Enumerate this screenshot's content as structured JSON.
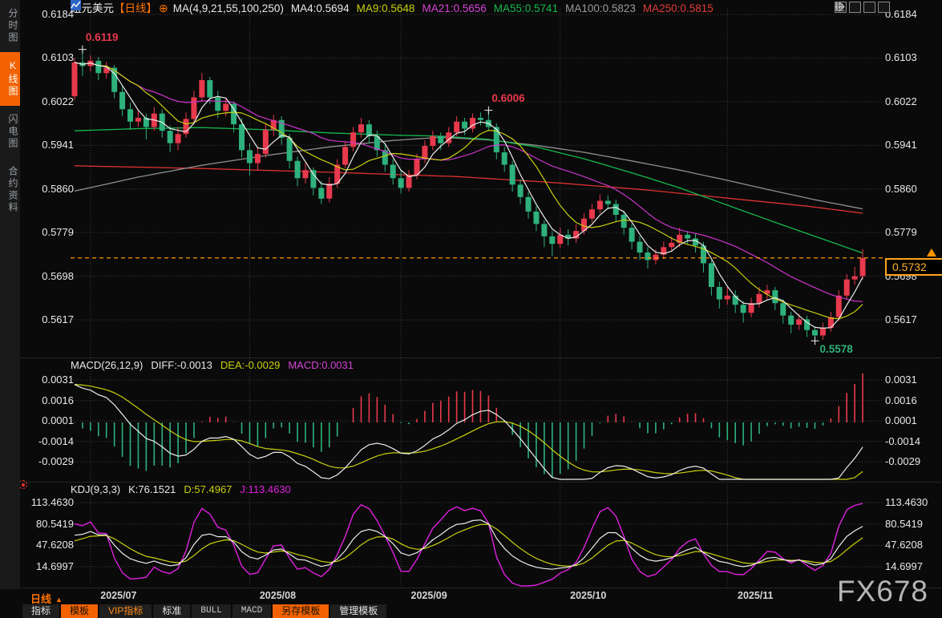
{
  "header": {
    "symbol": "纽元美元",
    "period_tag": "【日线】",
    "add_icon": "⊕",
    "ma_group_label": "MA(4,9,21,55,100,250)",
    "ma_values": [
      {
        "label": "MA4:0.5694",
        "color": "#e8e8e8"
      },
      {
        "label": "MA9:0.5648",
        "color": "#c9d00e"
      },
      {
        "label": "MA21:0.5656",
        "color": "#d543d5"
      },
      {
        "label": "MA55:0.5741",
        "color": "#16b84e"
      },
      {
        "label": "MA100:0.5823",
        "color": "#9a9a9a"
      },
      {
        "label": "MA250:0.5815",
        "color": "#e23b3b"
      }
    ],
    "toolbar_icons": [
      "move-icon",
      "axis-scale-left-icon",
      "axis-scale-right-icon",
      "pan-latest-icon"
    ]
  },
  "sidebar": {
    "items": [
      {
        "label": "分时图",
        "active": false
      },
      {
        "label": "K线图",
        "active": true
      },
      {
        "label": "闪电图",
        "active": false
      },
      {
        "label": "合约资料",
        "active": false
      }
    ]
  },
  "watermark": "FX678",
  "bottom": {
    "period_label": "日线",
    "period_arrow": "▲",
    "tabs": [
      {
        "label": "指标",
        "style": "plain"
      },
      {
        "label": "模板",
        "style": "orange"
      },
      {
        "label": "VIP指标",
        "style": "orange-text"
      },
      {
        "label": "标准",
        "style": "plain"
      },
      {
        "label": "BULL",
        "style": "mono"
      },
      {
        "label": "MACD",
        "style": "mono"
      },
      {
        "label": "另存模板",
        "style": "orange"
      },
      {
        "label": "管理模板",
        "style": "plain"
      }
    ]
  },
  "chart_data": {
    "type": "candlestick+indicators",
    "x_labels": [
      "2025/07",
      "2025/08",
      "2025/09",
      "2025/10",
      "2025/11"
    ],
    "x_label_indices": [
      2,
      22,
      41,
      61,
      82
    ],
    "colors": {
      "up": "#e8394d",
      "down": "#2eb17c",
      "ma4": "#ececec",
      "ma9": "#c9d00e",
      "ma21": "#cc35cc",
      "ma55": "#16b84e",
      "ma100": "#8f8f8f",
      "ma250": "#e03131",
      "grid": "#3c3c3c",
      "price_line": "#ff9500",
      "kdj_k": "#ececec",
      "kdj_d": "#c9d00e",
      "kdj_j": "#e020e0"
    },
    "main": {
      "y_ticks": [
        "0.6184",
        "0.6103",
        "0.6022",
        "0.5941",
        "0.5860",
        "0.5779",
        "0.5698",
        "0.5617"
      ],
      "last_price": "0.5732",
      "price_line_value": 0.5732,
      "annotations": [
        {
          "text": "0.6119",
          "index": 1,
          "price": 0.6119,
          "color": "#e8394d",
          "pos": "above"
        },
        {
          "text": "0.6006",
          "index": 52,
          "price": 0.6006,
          "color": "#e8394d",
          "pos": "above"
        },
        {
          "text": "0.5578",
          "index": 93,
          "price": 0.5578,
          "color": "#2eb17c",
          "pos": "below"
        }
      ],
      "ma55_path": [
        [
          0,
          0.5968
        ],
        [
          8,
          0.5972
        ],
        [
          16,
          0.5974
        ],
        [
          24,
          0.597
        ],
        [
          32,
          0.5964
        ],
        [
          40,
          0.596
        ],
        [
          46,
          0.5958
        ],
        [
          52,
          0.5952
        ],
        [
          58,
          0.5938
        ],
        [
          64,
          0.5916
        ],
        [
          70,
          0.589
        ],
        [
          76,
          0.5862
        ],
        [
          82,
          0.583
        ],
        [
          88,
          0.5798
        ],
        [
          93,
          0.5772
        ],
        [
          99,
          0.5741
        ]
      ],
      "ma100_path": [
        [
          0,
          0.5856
        ],
        [
          8,
          0.5882
        ],
        [
          16,
          0.5904
        ],
        [
          24,
          0.5922
        ],
        [
          32,
          0.5938
        ],
        [
          40,
          0.595
        ],
        [
          46,
          0.5956
        ],
        [
          52,
          0.5951
        ],
        [
          58,
          0.5941
        ],
        [
          64,
          0.5928
        ],
        [
          70,
          0.5912
        ],
        [
          76,
          0.5895
        ],
        [
          82,
          0.5876
        ],
        [
          88,
          0.5856
        ],
        [
          93,
          0.584
        ],
        [
          99,
          0.5823
        ]
      ],
      "ma250_path": [
        [
          0,
          0.5903
        ],
        [
          16,
          0.5898
        ],
        [
          32,
          0.5891
        ],
        [
          48,
          0.5883
        ],
        [
          60,
          0.5872
        ],
        [
          72,
          0.5858
        ],
        [
          84,
          0.584
        ],
        [
          92,
          0.5828
        ],
        [
          99,
          0.5815
        ]
      ],
      "candles": [
        [
          0.6032,
          0.6103,
          0.6025,
          0.6095
        ],
        [
          0.6095,
          0.6119,
          0.607,
          0.6088
        ],
        [
          0.6088,
          0.6108,
          0.6078,
          0.6098
        ],
        [
          0.6098,
          0.6105,
          0.6062,
          0.6075
        ],
        [
          0.6075,
          0.6096,
          0.6065,
          0.6085
        ],
        [
          0.6085,
          0.609,
          0.6028,
          0.604
        ],
        [
          0.604,
          0.6052,
          0.5995,
          0.6008
        ],
        [
          0.6008,
          0.602,
          0.597,
          0.5985
        ],
        [
          0.5985,
          0.6005,
          0.5975,
          0.5992
        ],
        [
          0.5992,
          0.6,
          0.5952,
          0.5975
        ],
        [
          0.5975,
          0.6012,
          0.5968,
          0.6
        ],
        [
          0.6,
          0.6008,
          0.5955,
          0.5968
        ],
        [
          0.5968,
          0.5978,
          0.5928,
          0.5945
        ],
        [
          0.5945,
          0.5975,
          0.5932,
          0.5962
        ],
        [
          0.5962,
          0.6002,
          0.5955,
          0.599
        ],
        [
          0.599,
          0.6042,
          0.5982,
          0.603
        ],
        [
          0.603,
          0.6075,
          0.6022,
          0.6062
        ],
        [
          0.6062,
          0.6068,
          0.6018,
          0.603
        ],
        [
          0.603,
          0.6042,
          0.5992,
          0.6005
        ],
        [
          0.6005,
          0.603,
          0.5995,
          0.6018
        ],
        [
          0.6018,
          0.6022,
          0.5965,
          0.598
        ],
        [
          0.598,
          0.5992,
          0.5918,
          0.5932
        ],
        [
          0.5932,
          0.5945,
          0.5885,
          0.5908
        ],
        [
          0.5908,
          0.5938,
          0.5895,
          0.5925
        ],
        [
          0.5925,
          0.5982,
          0.5918,
          0.597
        ],
        [
          0.597,
          0.5998,
          0.5958,
          0.5988
        ],
        [
          0.5988,
          0.5995,
          0.5942,
          0.5955
        ],
        [
          0.5955,
          0.5962,
          0.5898,
          0.5912
        ],
        [
          0.5912,
          0.592,
          0.5865,
          0.588
        ],
        [
          0.588,
          0.5908,
          0.587,
          0.5895
        ],
        [
          0.5895,
          0.59,
          0.5848,
          0.5862
        ],
        [
          0.5862,
          0.5875,
          0.5832,
          0.5842
        ],
        [
          0.5842,
          0.5882,
          0.5835,
          0.587
        ],
        [
          0.587,
          0.5915,
          0.5862,
          0.5905
        ],
        [
          0.5905,
          0.5948,
          0.5898,
          0.5938
        ],
        [
          0.5938,
          0.5975,
          0.593,
          0.5965
        ],
        [
          0.5965,
          0.5992,
          0.5955,
          0.598
        ],
        [
          0.598,
          0.5988,
          0.5945,
          0.5958
        ],
        [
          0.5958,
          0.5968,
          0.592,
          0.5932
        ],
        [
          0.5932,
          0.5942,
          0.5892,
          0.5905
        ],
        [
          0.5905,
          0.5915,
          0.5868,
          0.588
        ],
        [
          0.588,
          0.5895,
          0.5852,
          0.5862
        ],
        [
          0.5862,
          0.5895,
          0.5855,
          0.5885
        ],
        [
          0.5885,
          0.5925,
          0.5878,
          0.5915
        ],
        [
          0.5915,
          0.595,
          0.5908,
          0.594
        ],
        [
          0.594,
          0.5968,
          0.5932,
          0.5958
        ],
        [
          0.5958,
          0.5965,
          0.5932,
          0.5945
        ],
        [
          0.5945,
          0.5975,
          0.5938,
          0.5965
        ],
        [
          0.5965,
          0.5995,
          0.5958,
          0.5985
        ],
        [
          0.5985,
          0.5992,
          0.596,
          0.5972
        ],
        [
          0.5972,
          0.6,
          0.5965,
          0.5992
        ],
        [
          0.5992,
          0.6002,
          0.5978,
          0.5988
        ],
        [
          0.5988,
          0.6006,
          0.5968,
          0.5975
        ],
        [
          0.5975,
          0.5982,
          0.5915,
          0.5928
        ],
        [
          0.5928,
          0.5938,
          0.5892,
          0.5905
        ],
        [
          0.5905,
          0.5912,
          0.5855,
          0.5868
        ],
        [
          0.5868,
          0.5878,
          0.5832,
          0.5845
        ],
        [
          0.5845,
          0.5855,
          0.5805,
          0.5818
        ],
        [
          0.5818,
          0.5828,
          0.5782,
          0.5795
        ],
        [
          0.5795,
          0.5802,
          0.5752,
          0.5772
        ],
        [
          0.5772,
          0.5782,
          0.5735,
          0.5758
        ],
        [
          0.5758,
          0.5788,
          0.575,
          0.5775
        ],
        [
          0.5775,
          0.5785,
          0.5755,
          0.5768
        ],
        [
          0.5768,
          0.5795,
          0.576,
          0.5782
        ],
        [
          0.5782,
          0.5815,
          0.5775,
          0.5805
        ],
        [
          0.5805,
          0.5832,
          0.5798,
          0.5822
        ],
        [
          0.5822,
          0.585,
          0.5815,
          0.5838
        ],
        [
          0.5838,
          0.5848,
          0.5822,
          0.5832
        ],
        [
          0.5832,
          0.584,
          0.58,
          0.5812
        ],
        [
          0.5812,
          0.582,
          0.5775,
          0.5788
        ],
        [
          0.5788,
          0.5795,
          0.5748,
          0.5762
        ],
        [
          0.5762,
          0.5772,
          0.5728,
          0.5742
        ],
        [
          0.5742,
          0.5752,
          0.5712,
          0.5728
        ],
        [
          0.5728,
          0.5748,
          0.572,
          0.5738
        ],
        [
          0.5738,
          0.5762,
          0.573,
          0.5752
        ],
        [
          0.5752,
          0.5772,
          0.5745,
          0.576
        ],
        [
          0.576,
          0.5788,
          0.5752,
          0.5775
        ],
        [
          0.5775,
          0.5782,
          0.5758,
          0.5768
        ],
        [
          0.5768,
          0.5778,
          0.5742,
          0.5755
        ],
        [
          0.5755,
          0.5762,
          0.5705,
          0.5722
        ],
        [
          0.5722,
          0.5728,
          0.5662,
          0.5678
        ],
        [
          0.5678,
          0.5688,
          0.5638,
          0.5655
        ],
        [
          0.5655,
          0.5678,
          0.5645,
          0.5662
        ],
        [
          0.5662,
          0.5672,
          0.563,
          0.5645
        ],
        [
          0.5645,
          0.5652,
          0.5612,
          0.563
        ],
        [
          0.563,
          0.5658,
          0.5622,
          0.5648
        ],
        [
          0.5648,
          0.5678,
          0.564,
          0.5665
        ],
        [
          0.5665,
          0.5682,
          0.5655,
          0.5672
        ],
        [
          0.5672,
          0.5678,
          0.5635,
          0.5648
        ],
        [
          0.5648,
          0.5655,
          0.561,
          0.5625
        ],
        [
          0.5625,
          0.5632,
          0.5592,
          0.5608
        ],
        [
          0.5608,
          0.5628,
          0.5598,
          0.5618
        ],
        [
          0.5618,
          0.5625,
          0.5585,
          0.5598
        ],
        [
          0.5598,
          0.5605,
          0.5578,
          0.5588
        ],
        [
          0.5588,
          0.5612,
          0.558,
          0.5602
        ],
        [
          0.5602,
          0.5632,
          0.5595,
          0.5622
        ],
        [
          0.5622,
          0.5672,
          0.5615,
          0.5662
        ],
        [
          0.5662,
          0.5702,
          0.5655,
          0.5692
        ],
        [
          0.5692,
          0.5715,
          0.5682,
          0.5698
        ],
        [
          0.5698,
          0.5748,
          0.5692,
          0.5732
        ]
      ]
    },
    "macd": {
      "panel_label": "MACD(26,12,9)",
      "values": [
        {
          "label": "DIFF:-0.0013",
          "color": "#e8e8e8"
        },
        {
          "label": "DEA:-0.0029",
          "color": "#c9d00e"
        },
        {
          "label": "MACD:0.0031",
          "color": "#d543d5"
        }
      ],
      "y_ticks": [
        "0.0031",
        "0.0016",
        "0.0001",
        "-0.0014",
        "-0.0029"
      ]
    },
    "kdj": {
      "panel_label": "KDJ(9,3,3)",
      "values": [
        {
          "label": "K:76.1521",
          "color": "#e8e8e8"
        },
        {
          "label": "D:57.4967",
          "color": "#c9d00e"
        },
        {
          "label": "J:113.4630",
          "color": "#e020e0"
        }
      ],
      "y_ticks": [
        "113.4630",
        "80.5419",
        "47.6208",
        "14.6997"
      ]
    }
  }
}
